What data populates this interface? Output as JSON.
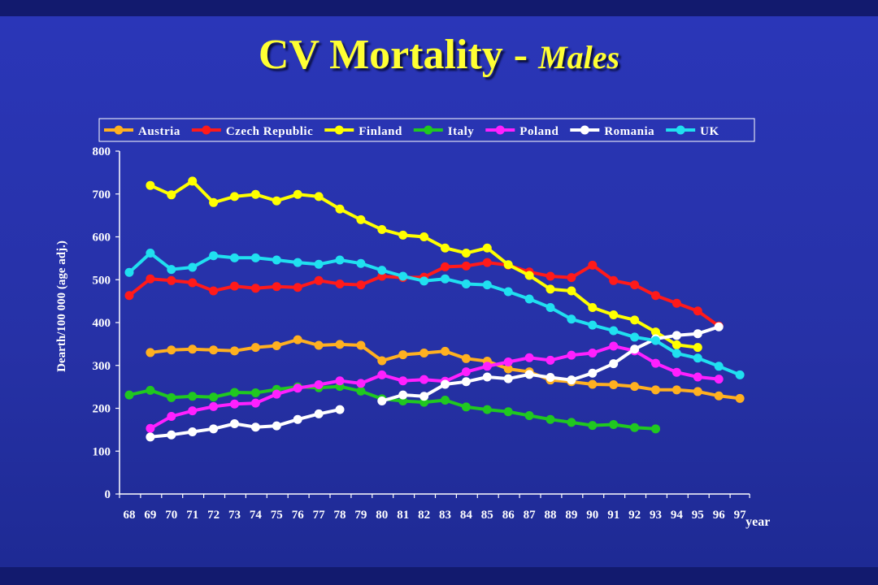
{
  "title": {
    "main": "CV Mortality",
    "separator": " - ",
    "sub": "Males"
  },
  "chart_data": {
    "type": "line",
    "title": "CV Mortality - Males",
    "xlabel": "year",
    "ylabel": "Dearth/100 000 (age adj.)",
    "ylim": [
      0,
      800
    ],
    "yticks": [
      0,
      100,
      200,
      300,
      400,
      500,
      600,
      700,
      800
    ],
    "categories": [
      "68",
      "69",
      "70",
      "71",
      "72",
      "73",
      "74",
      "75",
      "76",
      "77",
      "78",
      "79",
      "80",
      "81",
      "82",
      "83",
      "84",
      "85",
      "86",
      "87",
      "88",
      "89",
      "90",
      "91",
      "92",
      "93",
      "94",
      "95",
      "96",
      "97"
    ],
    "legend_position": "top",
    "grid": false,
    "series": [
      {
        "name": "Austria",
        "color": "#ffb020",
        "values": [
          null,
          330,
          336,
          338,
          336,
          334,
          342,
          346,
          360,
          347,
          349,
          347,
          311,
          325,
          329,
          333,
          316,
          310,
          292,
          285,
          266,
          262,
          256,
          255,
          251,
          243,
          243,
          239,
          229,
          223
        ]
      },
      {
        "name": "Czech Republic",
        "color": "#ff1a1a",
        "values": [
          463,
          502,
          498,
          493,
          474,
          485,
          480,
          484,
          482,
          498,
          490,
          488,
          508,
          505,
          506,
          530,
          532,
          540,
          534,
          518,
          508,
          505,
          534,
          498,
          488,
          463,
          445,
          427,
          392,
          null
        ]
      },
      {
        "name": "Finland",
        "color": "#ffff00",
        "values": [
          null,
          720,
          698,
          730,
          680,
          694,
          699,
          684,
          699,
          694,
          665,
          640,
          617,
          604,
          600,
          574,
          562,
          574,
          535,
          510,
          478,
          474,
          435,
          418,
          406,
          378,
          348,
          342,
          null,
          null
        ]
      },
      {
        "name": "Italy",
        "color": "#20c820",
        "values": [
          231,
          242,
          225,
          228,
          226,
          237,
          236,
          244,
          250,
          248,
          251,
          240,
          222,
          217,
          214,
          219,
          203,
          197,
          192,
          183,
          174,
          167,
          160,
          162,
          155,
          152,
          null,
          null,
          null,
          null
        ]
      },
      {
        "name": "Poland",
        "color": "#ff20ff",
        "values": [
          null,
          153,
          181,
          194,
          204,
          210,
          212,
          233,
          247,
          255,
          264,
          258,
          278,
          264,
          267,
          263,
          285,
          298,
          308,
          318,
          312,
          324,
          329,
          345,
          334,
          305,
          284,
          273,
          268,
          null
        ]
      },
      {
        "name": "Romania",
        "color": "#ffffff",
        "values": [
          null,
          133,
          138,
          145,
          152,
          164,
          156,
          159,
          174,
          187,
          197,
          null,
          217,
          231,
          228,
          256,
          262,
          273,
          269,
          279,
          272,
          266,
          282,
          304,
          338,
          362,
          370,
          374,
          390,
          null
        ]
      },
      {
        "name": "UK",
        "color": "#20e0f0",
        "values": [
          517,
          562,
          524,
          529,
          556,
          551,
          551,
          546,
          540,
          536,
          546,
          538,
          522,
          508,
          497,
          502,
          490,
          488,
          472,
          455,
          435,
          408,
          394,
          381,
          366,
          358,
          328,
          317,
          298,
          278
        ]
      }
    ]
  }
}
